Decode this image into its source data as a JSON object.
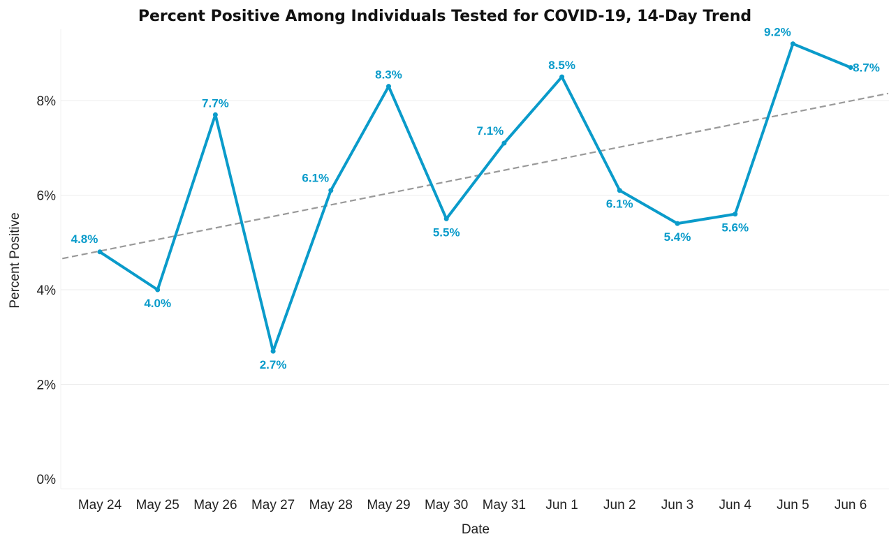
{
  "chart_data": {
    "type": "line",
    "title": "Percent Positive Among Individuals Tested for COVID-19, 14-Day Trend",
    "xlabel": "Date",
    "ylabel": "Percent Positive",
    "categories": [
      "May 24",
      "May 25",
      "May 26",
      "May 27",
      "May 28",
      "May 29",
      "May 30",
      "May 31",
      "Jun 1",
      "Jun 2",
      "Jun 3",
      "Jun 4",
      "Jun 5",
      "Jun 6"
    ],
    "series": [
      {
        "values": [
          4.8,
          4.0,
          7.7,
          2.7,
          6.1,
          8.3,
          5.5,
          7.1,
          8.5,
          6.1,
          5.4,
          5.6,
          9.2,
          8.7
        ],
        "labels": [
          "4.8%",
          "4.0%",
          "7.7%",
          "2.7%",
          "6.1%",
          "8.3%",
          "5.5%",
          "7.1%",
          "8.5%",
          "6.1%",
          "5.4%",
          "5.6%",
          "9.2%",
          "8.7%"
        ],
        "color": "#0a9bca",
        "label_positions": [
          "above",
          "below",
          "above",
          "below",
          "above",
          "above",
          "below",
          "above",
          "above",
          "below",
          "below",
          "below",
          "above",
          "right"
        ]
      }
    ],
    "trendline": {
      "style": "dashed",
      "color": "#999999",
      "start": {
        "x": "May 23.35",
        "y": 4.66
      },
      "end": {
        "x": "Jun 6.65",
        "y": 8.15
      }
    },
    "yticks": [
      0,
      2,
      4,
      6,
      8
    ],
    "ytick_labels": [
      "0%",
      "2%",
      "4%",
      "6%",
      "8%"
    ],
    "ylim": [
      -0.2,
      9.85
    ],
    "grid": true,
    "legend": "none"
  }
}
